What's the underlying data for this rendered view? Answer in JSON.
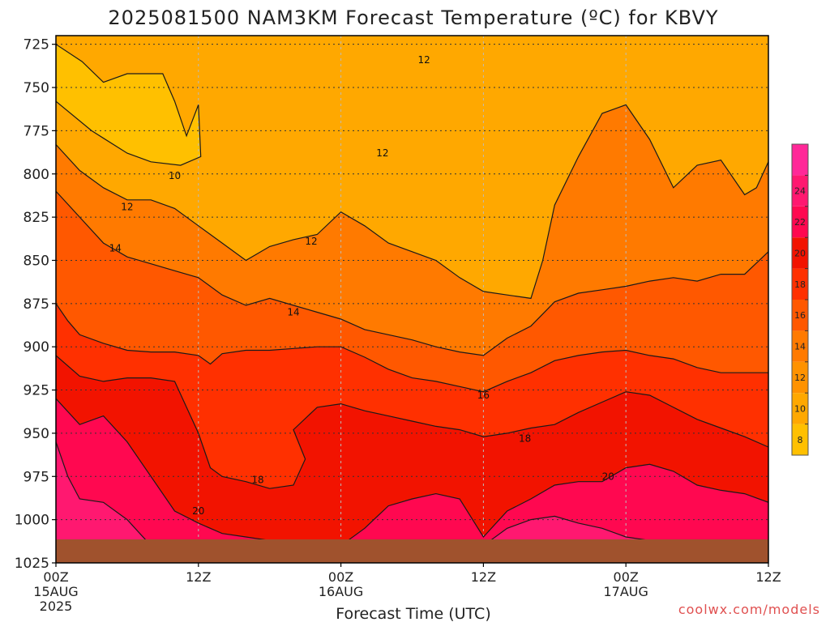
{
  "chart_data": {
    "type": "heatmap",
    "title": "2025081500 NAM3KM Forecast Temperature (ºC) for KBVY",
    "xlabel": "Forecast Time (UTC)",
    "credit": "coolwx.com/models",
    "y_ticks": [
      725,
      750,
      775,
      800,
      825,
      850,
      875,
      900,
      925,
      950,
      975,
      1000,
      1025
    ],
    "y_range": [
      720,
      1025
    ],
    "x_range_hours": [
      0,
      60
    ],
    "x_ticks": [
      {
        "hour": 0,
        "time": "00Z",
        "date": "15AUG",
        "year": "2025"
      },
      {
        "hour": 12,
        "time": "12Z",
        "date": "",
        "year": ""
      },
      {
        "hour": 24,
        "time": "00Z",
        "date": "16AUG",
        "year": ""
      },
      {
        "hour": 36,
        "time": "12Z",
        "date": "",
        "year": ""
      },
      {
        "hour": 48,
        "time": "00Z",
        "date": "17AUG",
        "year": ""
      },
      {
        "hour": 60,
        "time": "12Z",
        "date": "",
        "year": ""
      }
    ],
    "levels": [
      8,
      10,
      12,
      14,
      16,
      18,
      20,
      22,
      24
    ],
    "colorbar_labels": [
      "8",
      "10",
      "12",
      "14",
      "16",
      "18",
      "20",
      "22",
      "24"
    ],
    "colors": [
      "#ffc000",
      "#ffa800",
      "#ff9200",
      "#ff7a00",
      "#ff5800",
      "#ff3000",
      "#f21300",
      "#ff0850",
      "#ff1870",
      "#ff2898"
    ],
    "ground_color": "#a0522d",
    "contour_lines": [
      {
        "level": 10,
        "points": [
          [
            0,
            725
          ],
          [
            2.2,
            735
          ],
          [
            4,
            747
          ],
          [
            6,
            742
          ],
          [
            9,
            742
          ],
          [
            10,
            758
          ],
          [
            11,
            778
          ],
          [
            12,
            760
          ],
          [
            12.2,
            790
          ],
          [
            10.5,
            795
          ],
          [
            8,
            793
          ],
          [
            6,
            788
          ],
          [
            3,
            775
          ],
          [
            0,
            758
          ]
        ]
      },
      {
        "level": 12,
        "points": [
          [
            0,
            783
          ],
          [
            2,
            798
          ],
          [
            4,
            808
          ],
          [
            6,
            815
          ],
          [
            8,
            815
          ],
          [
            10,
            820
          ],
          [
            12,
            830
          ],
          [
            14,
            840
          ],
          [
            16,
            850
          ],
          [
            18,
            842
          ],
          [
            20,
            838
          ],
          [
            22,
            835
          ],
          [
            24,
            822
          ],
          [
            26,
            830
          ],
          [
            28,
            840
          ],
          [
            30,
            845
          ],
          [
            32,
            850
          ],
          [
            34,
            860
          ],
          [
            36,
            868
          ],
          [
            38,
            870
          ],
          [
            40,
            872
          ],
          [
            41,
            850
          ],
          [
            42,
            818
          ],
          [
            44,
            790
          ],
          [
            46,
            765
          ],
          [
            48,
            760
          ],
          [
            50,
            780
          ],
          [
            52,
            808
          ],
          [
            54,
            795
          ],
          [
            56,
            792
          ],
          [
            58,
            812
          ],
          [
            59,
            808
          ],
          [
            60,
            793
          ]
        ]
      },
      {
        "level": 14,
        "points": [
          [
            0,
            810
          ],
          [
            2,
            825
          ],
          [
            4,
            840
          ],
          [
            6,
            848
          ],
          [
            8,
            852
          ],
          [
            10,
            856
          ],
          [
            12,
            860
          ],
          [
            14,
            870
          ],
          [
            16,
            876
          ],
          [
            18,
            872
          ],
          [
            20,
            876
          ],
          [
            22,
            880
          ],
          [
            24,
            884
          ],
          [
            26,
            890
          ],
          [
            28,
            893
          ],
          [
            30,
            896
          ],
          [
            32,
            900
          ],
          [
            34,
            903
          ],
          [
            36,
            905
          ],
          [
            38,
            895
          ],
          [
            40,
            888
          ],
          [
            42,
            874
          ],
          [
            44,
            869
          ],
          [
            46,
            867
          ],
          [
            48,
            865
          ],
          [
            50,
            862
          ],
          [
            52,
            860
          ],
          [
            54,
            862
          ],
          [
            56,
            858
          ],
          [
            58,
            858
          ],
          [
            60,
            845
          ]
        ]
      },
      {
        "level": 16,
        "points": [
          [
            0,
            875
          ],
          [
            1,
            885
          ],
          [
            2,
            893
          ],
          [
            4,
            898
          ],
          [
            6,
            902
          ],
          [
            8,
            903
          ],
          [
            10,
            903
          ],
          [
            12,
            905
          ],
          [
            13,
            910
          ],
          [
            14,
            904
          ],
          [
            16,
            902
          ],
          [
            18,
            902
          ],
          [
            20,
            901
          ],
          [
            22,
            900
          ],
          [
            24,
            900
          ],
          [
            26,
            906
          ],
          [
            28,
            913
          ],
          [
            30,
            918
          ],
          [
            32,
            920
          ],
          [
            34,
            923
          ],
          [
            36,
            926
          ],
          [
            38,
            920
          ],
          [
            40,
            915
          ],
          [
            42,
            908
          ],
          [
            44,
            905
          ],
          [
            46,
            903
          ],
          [
            48,
            902
          ],
          [
            50,
            905
          ],
          [
            52,
            907
          ],
          [
            54,
            912
          ],
          [
            56,
            915
          ],
          [
            58,
            915
          ],
          [
            60,
            915
          ]
        ]
      },
      {
        "level": 18,
        "points": [
          [
            0,
            905
          ],
          [
            2,
            917
          ],
          [
            4,
            920
          ],
          [
            6,
            918
          ],
          [
            8,
            918
          ],
          [
            10,
            920
          ],
          [
            12,
            950
          ],
          [
            13,
            970
          ],
          [
            14,
            975
          ],
          [
            16,
            978
          ],
          [
            18,
            982
          ],
          [
            20,
            980
          ],
          [
            21,
            965
          ],
          [
            20,
            948
          ],
          [
            22,
            935
          ],
          [
            24,
            933
          ],
          [
            26,
            937
          ],
          [
            28,
            940
          ],
          [
            30,
            943
          ],
          [
            32,
            946
          ],
          [
            34,
            948
          ],
          [
            36,
            952
          ],
          [
            38,
            950
          ],
          [
            40,
            947
          ],
          [
            42,
            945
          ],
          [
            44,
            938
          ],
          [
            46,
            932
          ],
          [
            48,
            926
          ],
          [
            50,
            928
          ],
          [
            52,
            935
          ],
          [
            54,
            942
          ],
          [
            56,
            947
          ],
          [
            58,
            952
          ],
          [
            60,
            958
          ]
        ]
      },
      {
        "level": 20,
        "points": [
          [
            0,
            930
          ],
          [
            2,
            945
          ],
          [
            4,
            940
          ],
          [
            6,
            955
          ],
          [
            8,
            975
          ],
          [
            10,
            995
          ],
          [
            12,
            1002
          ],
          [
            14,
            1008
          ],
          [
            16,
            1010
          ],
          [
            18,
            1012
          ],
          [
            20,
            1015
          ],
          [
            24,
            1015
          ],
          [
            26,
            1005
          ],
          [
            28,
            992
          ],
          [
            30,
            988
          ],
          [
            32,
            985
          ],
          [
            34,
            988
          ],
          [
            36,
            1010
          ],
          [
            38,
            995
          ],
          [
            40,
            988
          ],
          [
            42,
            980
          ],
          [
            44,
            978
          ],
          [
            46,
            978
          ],
          [
            48,
            970
          ],
          [
            50,
            968
          ],
          [
            52,
            972
          ],
          [
            54,
            980
          ],
          [
            56,
            983
          ],
          [
            58,
            985
          ],
          [
            60,
            990
          ]
        ]
      },
      {
        "level": 22,
        "points": [
          [
            0,
            955
          ],
          [
            1,
            975
          ],
          [
            2,
            988
          ],
          [
            4,
            990
          ],
          [
            6,
            1000
          ],
          [
            8,
            1015
          ]
        ]
      },
      {
        "level": 22,
        "points": [
          [
            36,
            1015
          ],
          [
            38,
            1005
          ],
          [
            40,
            1000
          ],
          [
            42,
            998
          ],
          [
            44,
            1002
          ],
          [
            46,
            1005
          ],
          [
            48,
            1010
          ],
          [
            50,
            1012
          ]
        ]
      }
    ],
    "contour_labels": [
      {
        "text": "12",
        "hour": 31,
        "hpa": 734
      },
      {
        "text": "12",
        "hour": 27.5,
        "hpa": 788
      },
      {
        "text": "10",
        "hour": 10,
        "hpa": 801
      },
      {
        "text": "12",
        "hour": 6,
        "hpa": 819
      },
      {
        "text": "12",
        "hour": 21.5,
        "hpa": 839
      },
      {
        "text": "14",
        "hour": 5,
        "hpa": 843
      },
      {
        "text": "14",
        "hour": 20,
        "hpa": 880
      },
      {
        "text": "16",
        "hour": 36,
        "hpa": 928
      },
      {
        "text": "18",
        "hour": 39.5,
        "hpa": 953
      },
      {
        "text": "18",
        "hour": 17,
        "hpa": 977
      },
      {
        "text": "20",
        "hour": 46.5,
        "hpa": 975
      },
      {
        "text": "20",
        "hour": 12,
        "hpa": 995
      }
    ],
    "grid": true
  }
}
